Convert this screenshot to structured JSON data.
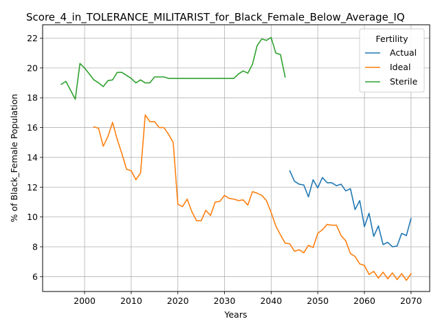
{
  "chart_data": {
    "type": "line",
    "title": "Score_4_in_TOLERANCE_MILITARIST_for_Black_Female_Below_Average_IQ",
    "xlabel": "Years",
    "ylabel": "% of Black_Female Population",
    "xlim": [
      1991,
      2074
    ],
    "ylim": [
      5.0,
      22.9
    ],
    "xticks": [
      2000,
      2010,
      2020,
      2030,
      2040,
      2050,
      2060,
      2070
    ],
    "yticks": [
      6,
      8,
      10,
      12,
      14,
      16,
      18,
      20,
      22
    ],
    "grid": true,
    "legend": {
      "title": "Fertility",
      "position": "top-right"
    },
    "series": [
      {
        "name": "Actual",
        "color": "#1f77b4",
        "x": [
          2044,
          2045,
          2046,
          2047,
          2048,
          2049,
          2050,
          2051,
          2052,
          2053,
          2054,
          2055,
          2056,
          2057,
          2058,
          2059,
          2060,
          2061,
          2062,
          2063,
          2064,
          2065,
          2066,
          2067,
          2068,
          2069,
          2070
        ],
        "y": [
          13.1,
          12.4,
          12.2,
          12.15,
          11.35,
          12.5,
          11.95,
          12.65,
          12.3,
          12.3,
          12.1,
          12.2,
          11.75,
          11.9,
          10.5,
          11.1,
          9.35,
          10.25,
          8.7,
          9.4,
          8.15,
          8.3,
          8.0,
          8.05,
          8.9,
          8.75,
          9.9
        ]
      },
      {
        "name": "Ideal",
        "color": "#ff7f0e",
        "x": [
          2002,
          2003,
          2004,
          2005,
          2006,
          2007,
          2008,
          2009,
          2010,
          2011,
          2012,
          2013,
          2014,
          2015,
          2016,
          2017,
          2018,
          2019,
          2020,
          2021,
          2022,
          2023,
          2024,
          2025,
          2026,
          2027,
          2028,
          2029,
          2030,
          2031,
          2032,
          2033,
          2034,
          2035,
          2036,
          2037,
          2038,
          2039,
          2040,
          2041,
          2042,
          2043,
          2044,
          2045,
          2046,
          2047,
          2048,
          2049,
          2050,
          2051,
          2052,
          2053,
          2054,
          2055,
          2056,
          2057,
          2058,
          2059,
          2060,
          2061,
          2062,
          2063,
          2064,
          2065,
          2066,
          2067,
          2068,
          2069,
          2070
        ],
        "y": [
          16.05,
          15.95,
          14.75,
          15.4,
          16.35,
          15.2,
          14.25,
          13.2,
          13.1,
          12.5,
          12.95,
          16.85,
          16.4,
          16.4,
          16.0,
          16.0,
          15.55,
          15.0,
          10.85,
          10.7,
          11.2,
          10.35,
          9.75,
          9.75,
          10.45,
          10.1,
          11.0,
          11.05,
          11.45,
          11.25,
          11.2,
          11.1,
          11.15,
          10.8,
          11.7,
          11.6,
          11.45,
          11.1,
          10.3,
          9.4,
          8.8,
          8.25,
          8.2,
          7.7,
          7.8,
          7.6,
          8.1,
          7.95,
          8.9,
          9.15,
          9.5,
          9.45,
          9.45,
          8.75,
          8.4,
          7.55,
          7.35,
          6.85,
          6.75,
          6.15,
          6.35,
          5.9,
          6.3,
          5.85,
          6.25,
          5.8,
          6.2,
          5.75,
          6.2
        ]
      },
      {
        "name": "Sterile",
        "color": "#2ca02c",
        "x": [
          1995,
          1996,
          1997,
          1998,
          1999,
          2000,
          2001,
          2002,
          2003,
          2004,
          2005,
          2006,
          2007,
          2008,
          2009,
          2010,
          2011,
          2012,
          2013,
          2014,
          2015,
          2016,
          2017,
          2018,
          2019,
          2020,
          2021,
          2022,
          2023,
          2024,
          2025,
          2026,
          2027,
          2028,
          2029,
          2030,
          2031,
          2032,
          2033,
          2034,
          2035,
          2036,
          2037,
          2038,
          2039,
          2040,
          2041,
          2042,
          2043
        ],
        "y": [
          18.9,
          19.1,
          18.5,
          17.9,
          20.3,
          20.0,
          19.6,
          19.2,
          19.0,
          18.75,
          19.15,
          19.2,
          19.7,
          19.7,
          19.5,
          19.3,
          19.0,
          19.2,
          19.0,
          19.0,
          19.4,
          19.4,
          19.4,
          19.3,
          19.3,
          19.3,
          19.3,
          19.3,
          19.3,
          19.3,
          19.3,
          19.3,
          19.3,
          19.3,
          19.3,
          19.3,
          19.3,
          19.3,
          19.6,
          19.8,
          19.65,
          20.25,
          21.5,
          21.95,
          21.85,
          22.05,
          21.0,
          20.9,
          19.4
        ]
      }
    ]
  }
}
